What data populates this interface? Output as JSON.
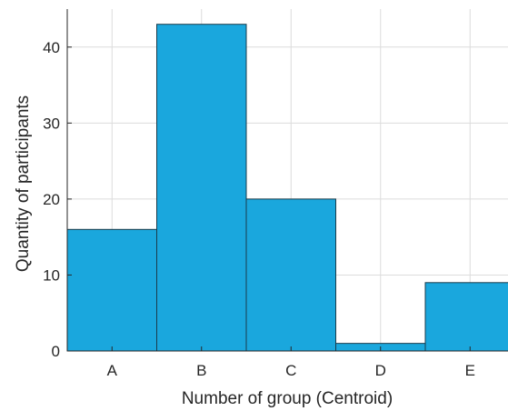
{
  "chart_data": {
    "type": "bar",
    "categories": [
      "A",
      "B",
      "C",
      "D",
      "E"
    ],
    "values": [
      16,
      43,
      20,
      1,
      9
    ],
    "xlabel": "Number of group (Centroid)",
    "ylabel": "Quantity of participants",
    "ylim": [
      0,
      45
    ],
    "yticks": [
      0,
      10,
      20,
      30,
      40
    ],
    "grid": true,
    "bar_color": "#1aa7dd"
  }
}
